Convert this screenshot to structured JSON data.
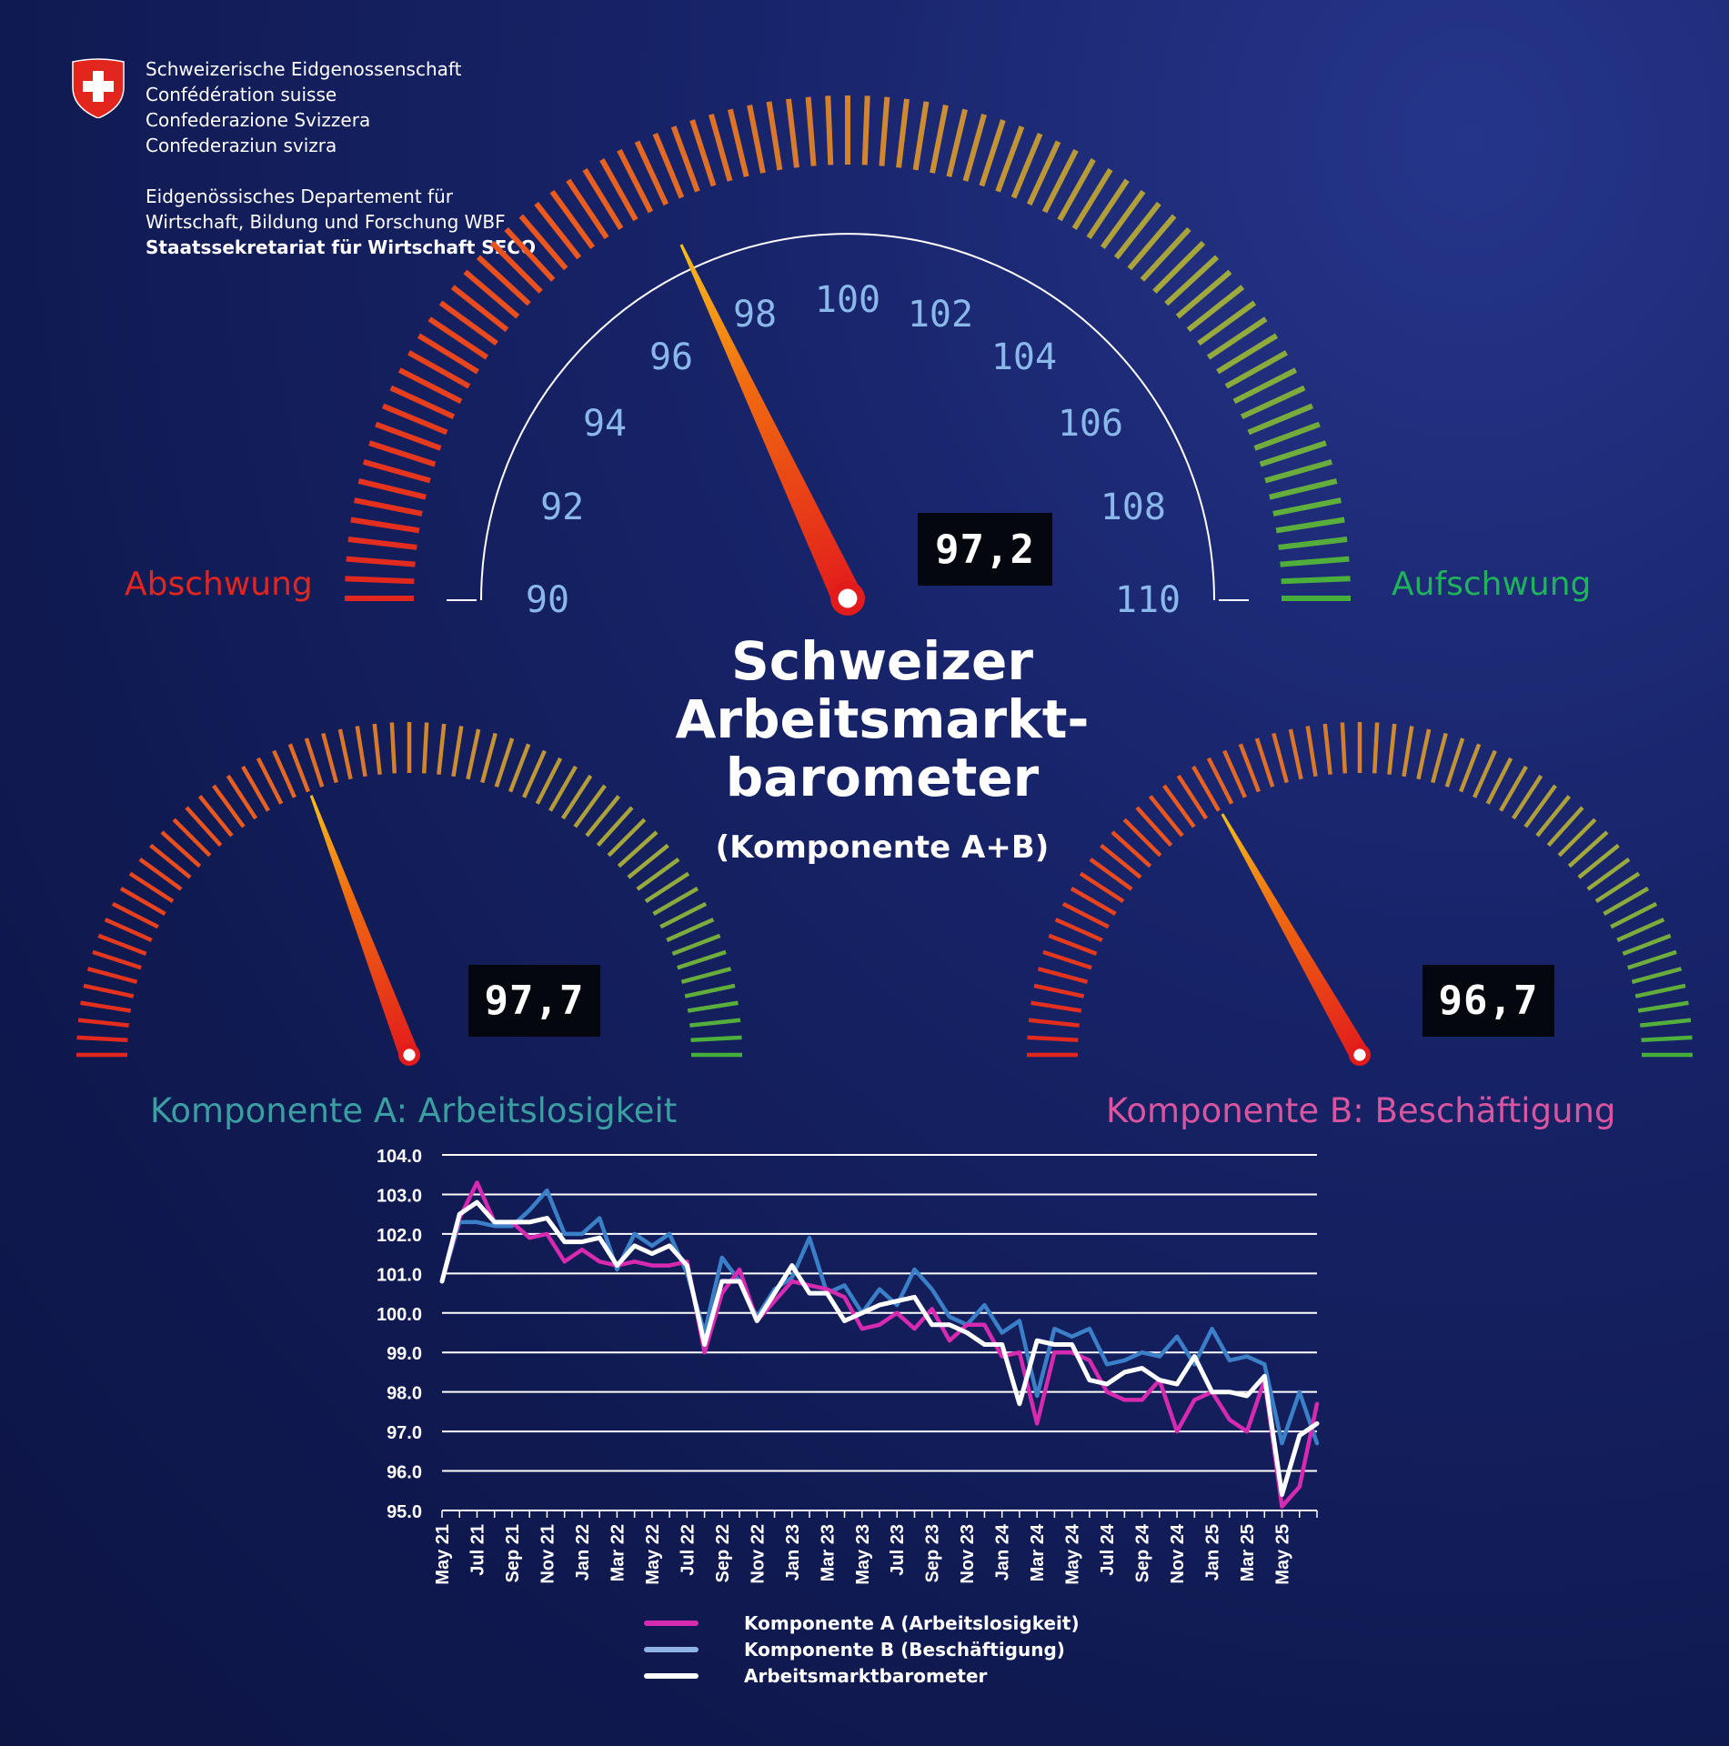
{
  "header": {
    "confederation_lines": [
      "Schweizerische Eidgenossenschaft",
      "Confédération suisse",
      "Confederazione Svizzera",
      "Confederaziun svizra"
    ],
    "department_lines": [
      "Eidgenössisches Departement für",
      "Wirtschaft, Bildung und Forschung WBF"
    ],
    "office": "Staatssekretariat für Wirtschaft SECO"
  },
  "title": "Schweizer Arbeitsmarkt- barometer",
  "title_lines": [
    "Schweizer",
    "Arbeitsmarkt-",
    "barometer"
  ],
  "subtitle": "(Komponente A+B)",
  "main_gauge": {
    "value": 97.2,
    "readout": "97,2",
    "min": 90,
    "max": 110,
    "scale_labels": [
      "90",
      "92",
      "94",
      "96",
      "98",
      "100",
      "102",
      "104",
      "106",
      "108",
      "110"
    ],
    "left_label": "Abschwung",
    "right_label": "Aufschwung"
  },
  "gauge_a": {
    "value": 97.7,
    "readout": "97,7",
    "label": "Komponente A: Arbeitslosigkeit"
  },
  "gauge_b": {
    "value": 96.7,
    "readout": "96,7",
    "label": "Komponente B: Beschäftigung"
  },
  "colors": {
    "label_left": "#e2261e",
    "label_right": "#1fb35a",
    "comp_a": "#3b9ea0",
    "comp_b": "#d9559f",
    "series_a": "#d62ab0",
    "series_b": "#3b7fc8",
    "series_total": "#ffffff"
  },
  "chart_data": {
    "type": "line",
    "ylim": [
      95.0,
      104.0
    ],
    "yticks": [
      "95.0",
      "96.0",
      "97.0",
      "98.0",
      "99.0",
      "100.0",
      "101.0",
      "102.0",
      "103.0",
      "104.0"
    ],
    "x_tick_labels": [
      "May 21",
      "Jul 21",
      "Sep 21",
      "Nov 21",
      "Jan 22",
      "Mar 22",
      "May 22",
      "Jul 22",
      "Sep 22",
      "Nov 22",
      "Jan 23",
      "Mar 23",
      "May 23",
      "Jul 23",
      "Sep 23",
      "Nov 23",
      "Jan 24",
      "Mar 24",
      "May 24",
      "Jul 24",
      "Sep 24",
      "Nov 24",
      "Jan 25",
      "Mar 25",
      "May 25"
    ],
    "x_start": "2021-05",
    "series": [
      {
        "name": "Komponente A (Arbeitslosigkeit)",
        "color": "#d62ab0",
        "values": [
          100.8,
          102.4,
          103.3,
          102.3,
          102.3,
          101.9,
          102.0,
          101.3,
          101.6,
          101.3,
          101.2,
          101.3,
          101.2,
          101.2,
          101.3,
          99.0,
          100.5,
          101.1,
          99.8,
          100.3,
          100.8,
          100.7,
          100.6,
          100.4,
          99.6,
          99.7,
          100.0,
          99.6,
          100.1,
          99.3,
          99.7,
          99.7,
          98.9,
          99.0,
          97.2,
          99.0,
          99.0,
          98.8,
          98.0,
          97.8,
          97.8,
          98.3,
          97.0,
          97.8,
          98.0,
          97.3,
          97.0,
          98.3,
          95.1,
          95.6,
          97.7
        ]
      },
      {
        "name": "Komponente B (Beschäftigung)",
        "color": "#3b7fc8",
        "values": [
          100.8,
          102.3,
          102.3,
          102.2,
          102.2,
          102.6,
          103.1,
          102.0,
          102.0,
          102.4,
          101.1,
          102.0,
          101.7,
          102.0,
          101.0,
          99.5,
          101.4,
          100.8,
          99.9,
          100.6,
          100.9,
          101.9,
          100.5,
          100.7,
          100.0,
          100.6,
          100.2,
          101.1,
          100.6,
          99.9,
          99.7,
          100.2,
          99.5,
          99.8,
          97.9,
          99.6,
          99.4,
          99.6,
          98.7,
          98.8,
          99.0,
          98.9,
          99.4,
          98.7,
          99.6,
          98.8,
          98.9,
          98.7,
          96.7,
          98.0,
          96.7
        ]
      },
      {
        "name": "Arbeitsmarktbarometer",
        "color": "#ffffff",
        "values": [
          100.8,
          102.5,
          102.8,
          102.3,
          102.3,
          102.3,
          102.4,
          101.8,
          101.8,
          101.9,
          101.2,
          101.7,
          101.5,
          101.7,
          101.2,
          99.2,
          100.8,
          100.8,
          99.8,
          100.5,
          101.2,
          100.5,
          100.5,
          99.8,
          100.0,
          100.2,
          100.3,
          100.4,
          99.7,
          99.7,
          99.5,
          99.2,
          99.2,
          97.7,
          99.3,
          99.2,
          99.2,
          98.3,
          98.2,
          98.5,
          98.6,
          98.3,
          98.2,
          98.9,
          98.0,
          98.0,
          97.9,
          98.4,
          95.4,
          96.9,
          97.2
        ]
      }
    ]
  }
}
